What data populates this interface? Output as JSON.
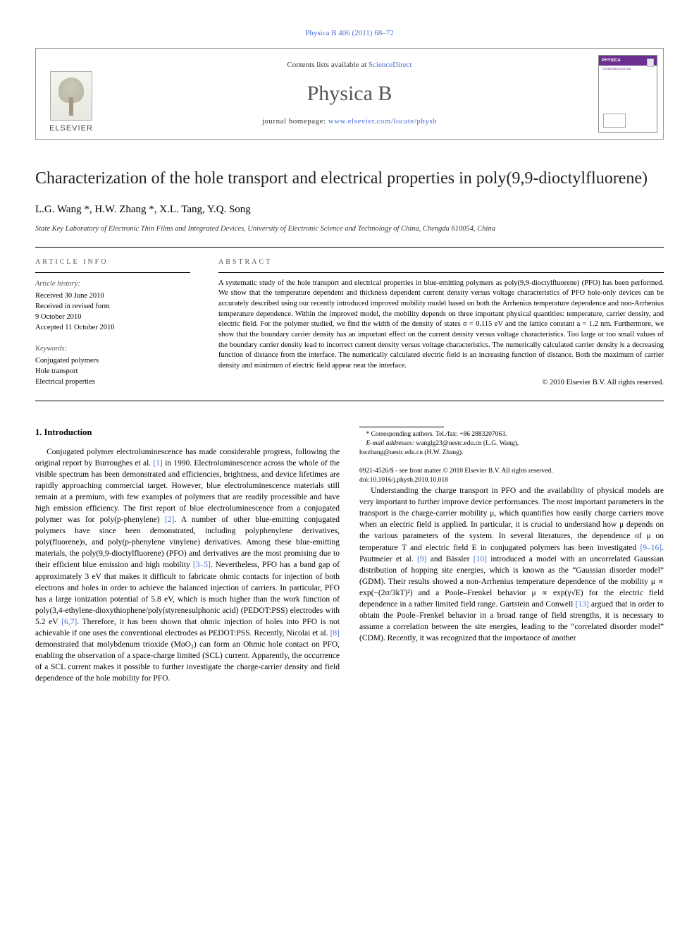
{
  "header": {
    "top_link": "Physica B 406 (2011) 68–72",
    "contents_prefix": "Contents lists available at ",
    "contents_link": "ScienceDirect",
    "journal": "Physica B",
    "homepage_prefix": "journal homepage: ",
    "homepage_url": "www.elsevier.com/locate/physb",
    "publisher": "ELSEVIER",
    "cover_label": "PHYSICA",
    "cover_sub": "CONDENSED MATTER"
  },
  "article": {
    "title": "Characterization of the hole transport and electrical properties in poly(9,9-dioctylfluorene)",
    "authors": "L.G. Wang *, H.W. Zhang *, X.L. Tang, Y.Q. Song",
    "affiliation": "State Key Laboratory of Electronic Thin Films and Integrated Devices, University of Electronic Science and Technology of China, Chengdu 610054, China"
  },
  "info": {
    "head": "ARTICLE INFO",
    "history_head": "Article history:",
    "history": [
      "Received 30 June 2010",
      "Received in revised form",
      "9 October 2010",
      "Accepted 11 October 2010"
    ],
    "keywords_head": "Keywords:",
    "keywords": [
      "Conjugated polymers",
      "Hole transport",
      "Electrical properties"
    ]
  },
  "abstract": {
    "head": "ABSTRACT",
    "body": "A systematic study of the hole transport and electrical properties in blue-emitting polymers as poly(9,9-dioctylfluorene) (PFO) has been performed. We show that the temperature dependent and thickness dependent current density versus voltage characteristics of PFO hole-only devices can be accurately described using our recently introduced improved mobility model based on both the Arrhenius temperature dependence and non-Arrhenius temperature dependence. Within the improved model, the mobility depends on three important physical quantities: temperature, carrier density, and electric field. For the polymer studied, we find the width of the density of states σ = 0.115 eV and the lattice constant a = 1.2 nm. Furthermore, we show that the boundary carrier density has an important effect on the current density versus voltage characteristics. Too large or too small values of the boundary carrier density lead to incorrect current density versus voltage characteristics. The numerically calculated carrier density is a decreasing function of distance from the interface. The numerically calculated electric field is an increasing function of distance. Both the maximum of carrier density and minimum of electric field appear near the interface.",
    "copyright": "© 2010 Elsevier B.V. All rights reserved."
  },
  "body": {
    "section1_head": "1.  Introduction",
    "p1a": "Conjugated polymer electroluminescence has made considerable progress, following the original report by Burroughes et al. ",
    "ref1": "[1]",
    "p1b": " in 1990. Electroluminescence across the whole of the visible spectrum has been demonstrated and efficiencies, brightness, and device lifetimes are rapidly approaching commercial target. However, blue electroluminescence materials still remain at a premium, with few examples of polymers that are readily processible and have high emission efficiency. The first report of blue electroluminescence from a conjugated polymer was for poly(p-phenylene) ",
    "ref2": "[2]",
    "p1c": ". A number of other blue-emitting conjugated polymers have since been demonstrated, including polyphenylene derivatives, poly(fluorene)s, and poly(p-phenylene vinylene) derivatives. Among these blue-emitting materials, the poly(9,9-dioctylfluorene) (PFO) and derivatives are the most promising due to their efficient blue emission and high mobility ",
    "ref3_5": "[3–5]",
    "p1d": ". Nevertheless, PFO has a band gap of approximately 3 eV that makes it difficult to fabricate ohmic contacts for injection of both electrons and holes in order to achieve the balanced injection of carriers. In particular, PFO has a large ionization potential of 5.8 eV, which is much higher than the work function of poly(3,4-ethylene-dioxythiophene/poly(styrenesulphonic acid) (PEDOT:PSS) electrodes",
    "p2a": "with 5.2 eV ",
    "ref6_7": "[6,7]",
    "p2b": ". Therefore, it has been shown that ohmic injection of holes into PFO is not achievable if one uses the conventional electrodes as PEDOT:PSS. Recently, Nicolai et al. ",
    "ref8": "[8]",
    "p2c": " demonstrated that molybdenum trioxide (MoO₃) can form an Ohmic hole contact on PFO, enabling the observation of a space-charge limited (SCL) current. Apparently, the occurrence of a SCL current makes it possible to further investigate the charge-carrier density and field dependence of the hole mobility for PFO.",
    "p3a": "Understanding the charge transport in PFO and the availability of physical models are very important to further improve device performances. The most important parameters in the transport is the charge-carrier mobility μ, which quantifies how easily charge carriers move when an electric field is applied. In particular, it is crucial to understand how μ depends on the various parameters of the system. In several literatures, the dependence of μ on temperature T and electric field E in conjugated polymers has been investigated ",
    "ref9_16": "[9–16]",
    "p3b": ". Pautmeier et al. ",
    "ref9": "[9]",
    "p3c": " and Bässler ",
    "ref10": "[10]",
    "p3d": " introduced a model with an uncorrelated Gaussian distribution of hopping site energies, which is known as the “Gaussian disorder model” (GDM). Their results showed a non-Arrhenius temperature dependence of the mobility μ ∝ exp(−(2σ/3kT)²) and a Poole–Frenkel behavior μ ∝ exp(γ√E) for the electric field dependence in a rather limited field range. Gartstein and Conwell ",
    "ref13": "[13]",
    "p3e": " argued that in order to obtain the Poole–Frenkel behavior in a broad range of field strengths, it is necessary to assume a correlation between the site energies, leading to the “correlated disorder model” (CDM). Recently, it was recognized that the importance of another"
  },
  "footnotes": {
    "corr": "* Corresponding authors. Tel./fax: +86 2883207063.",
    "emails_label": "E-mail addresses: ",
    "email1": "wanglg23@uestc.edu.cn (L.G. Wang),",
    "email2": "hwzhang@uestc.edu.cn (H.W. Zhang)."
  },
  "bottom": {
    "line1": "0921-4526/$ - see front matter © 2010 Elsevier B.V. All rights reserved.",
    "line2": "doi:10.1016/j.physb.2010.10.018"
  },
  "colors": {
    "link": "#4a6fd8",
    "text": "#000000",
    "purple": "#6b2f8f"
  }
}
